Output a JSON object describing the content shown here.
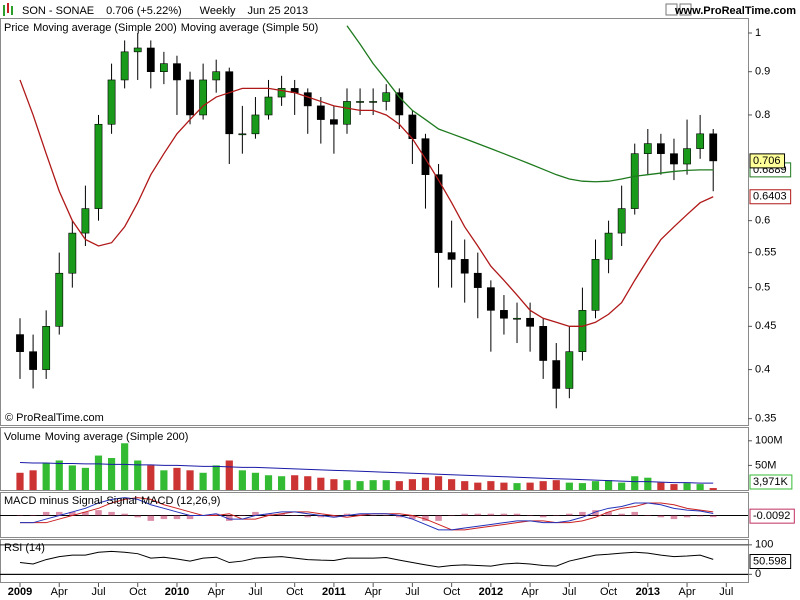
{
  "chart_data": [
    {
      "type": "candlestick",
      "title": "SON - SONAE",
      "subtitle": "0.706 (+5.22%)",
      "period": "Weekly",
      "date": "Jun 25 2013",
      "source": "www.ProRealTime.com",
      "copyright": "© ProRealTime.com",
      "name": "Price",
      "color_up": "#1a9a1a",
      "color_down": "#000000",
      "x": [
        0,
        1,
        2,
        3,
        4,
        5,
        6,
        7,
        8,
        9,
        10,
        11,
        12,
        13,
        14,
        15,
        16,
        17,
        18,
        19,
        20,
        21,
        22,
        23,
        24,
        25,
        26,
        27,
        28,
        29,
        30,
        31,
        32,
        33,
        34,
        35,
        36,
        37,
        38,
        39,
        40,
        41,
        42,
        43,
        44,
        45,
        46,
        47,
        48,
        49,
        50,
        51,
        52,
        53
      ],
      "open": [
        0.44,
        0.42,
        0.4,
        0.45,
        0.52,
        0.58,
        0.62,
        0.78,
        0.88,
        0.95,
        0.96,
        0.9,
        0.92,
        0.88,
        0.8,
        0.88,
        0.9,
        0.76,
        0.76,
        0.8,
        0.84,
        0.86,
        0.85,
        0.82,
        0.79,
        0.78,
        0.83,
        0.83,
        0.83,
        0.85,
        0.8,
        0.75,
        0.68,
        0.55,
        0.54,
        0.52,
        0.5,
        0.47,
        0.46,
        0.46,
        0.45,
        0.41,
        0.38,
        0.42,
        0.47,
        0.54,
        0.58,
        0.62,
        0.72,
        0.74,
        0.72,
        0.7,
        0.73,
        0.76
      ],
      "high": [
        0.46,
        0.44,
        0.47,
        0.55,
        0.6,
        0.66,
        0.8,
        0.92,
        0.98,
        1.0,
        0.98,
        0.95,
        0.94,
        0.9,
        0.92,
        0.93,
        0.91,
        0.82,
        0.84,
        0.88,
        0.89,
        0.88,
        0.86,
        0.84,
        0.82,
        0.86,
        0.86,
        0.86,
        0.87,
        0.86,
        0.81,
        0.76,
        0.7,
        0.6,
        0.57,
        0.55,
        0.51,
        0.49,
        0.48,
        0.48,
        0.46,
        0.43,
        0.45,
        0.5,
        0.57,
        0.6,
        0.66,
        0.74,
        0.77,
        0.76,
        0.75,
        0.79,
        0.8,
        0.77
      ],
      "low": [
        0.39,
        0.38,
        0.39,
        0.44,
        0.5,
        0.56,
        0.6,
        0.76,
        0.86,
        0.88,
        0.86,
        0.87,
        0.8,
        0.78,
        0.79,
        0.85,
        0.7,
        0.72,
        0.75,
        0.79,
        0.82,
        0.8,
        0.76,
        0.74,
        0.72,
        0.76,
        0.8,
        0.8,
        0.81,
        0.77,
        0.7,
        0.62,
        0.5,
        0.5,
        0.48,
        0.46,
        0.42,
        0.44,
        0.43,
        0.42,
        0.39,
        0.36,
        0.37,
        0.41,
        0.46,
        0.52,
        0.56,
        0.61,
        0.68,
        0.68,
        0.67,
        0.68,
        0.71,
        0.65
      ],
      "close": [
        0.42,
        0.4,
        0.45,
        0.52,
        0.58,
        0.62,
        0.78,
        0.88,
        0.95,
        0.96,
        0.9,
        0.92,
        0.88,
        0.8,
        0.88,
        0.9,
        0.76,
        0.76,
        0.8,
        0.84,
        0.86,
        0.85,
        0.82,
        0.79,
        0.78,
        0.83,
        0.83,
        0.83,
        0.85,
        0.8,
        0.75,
        0.68,
        0.55,
        0.54,
        0.52,
        0.5,
        0.47,
        0.46,
        0.46,
        0.45,
        0.41,
        0.38,
        0.42,
        0.47,
        0.54,
        0.58,
        0.62,
        0.72,
        0.74,
        0.72,
        0.7,
        0.73,
        0.76,
        0.706
      ],
      "series": [
        {
          "name": "Moving average (Simple 200)",
          "color": "#1e7a1e",
          "values": [
            null,
            null,
            null,
            null,
            null,
            null,
            null,
            null,
            null,
            null,
            null,
            null,
            null,
            null,
            null,
            null,
            null,
            null,
            null,
            null,
            null,
            null,
            null,
            null,
            null,
            1.02,
            0.97,
            0.92,
            0.88,
            0.84,
            0.81,
            0.79,
            0.77,
            0.76,
            0.75,
            0.74,
            0.73,
            0.72,
            0.71,
            0.7,
            0.69,
            0.68,
            0.672,
            0.668,
            0.667,
            0.668,
            0.672,
            0.677,
            0.68,
            0.683,
            0.686,
            0.688,
            0.689,
            0.6889
          ]
        },
        {
          "name": "Moving average (Simple 50)",
          "color": "#b01818",
          "values": [
            0.88,
            0.8,
            0.72,
            0.65,
            0.6,
            0.57,
            0.56,
            0.565,
            0.59,
            0.63,
            0.68,
            0.72,
            0.76,
            0.79,
            0.82,
            0.84,
            0.85,
            0.86,
            0.86,
            0.86,
            0.855,
            0.85,
            0.84,
            0.83,
            0.82,
            0.815,
            0.81,
            0.81,
            0.8,
            0.78,
            0.75,
            0.71,
            0.67,
            0.63,
            0.59,
            0.56,
            0.53,
            0.51,
            0.49,
            0.47,
            0.46,
            0.455,
            0.45,
            0.45,
            0.455,
            0.465,
            0.48,
            0.51,
            0.54,
            0.57,
            0.59,
            0.61,
            0.63,
            0.6403
          ]
        }
      ],
      "log_scale": true,
      "xlim": [
        -1.53,
        55.66
      ],
      "ylim": [
        0.344,
        1.036
      ],
      "yticks": [
        0.35,
        0.4,
        0.45,
        0.5,
        0.55,
        0.6,
        0.8,
        0.9,
        1
      ]
    },
    {
      "type": "bar",
      "x": [
        0,
        1,
        2,
        3,
        4,
        5,
        6,
        7,
        8,
        9,
        10,
        11,
        12,
        13,
        14,
        15,
        16,
        17,
        18,
        19,
        20,
        21,
        22,
        23,
        24,
        25,
        26,
        27,
        28,
        29,
        30,
        31,
        32,
        33,
        34,
        35,
        36,
        37,
        38,
        39,
        40,
        41,
        42,
        43,
        44,
        45,
        46,
        47,
        48,
        49,
        50,
        51,
        52,
        53
      ],
      "xlim": [
        -1.53,
        55.66
      ],
      "ylim": [
        0,
        124000000
      ],
      "yticks": [
        {
          "value": 50000000,
          "label": "50M"
        },
        {
          "value": 100000000,
          "label": "100M"
        }
      ],
      "series": [
        {
          "name": "Volume",
          "color_up": "#33bb33",
          "color_down": "#cc3333",
          "values": [
            35000000,
            40000000,
            55000000,
            60000000,
            50000000,
            45000000,
            70000000,
            65000000,
            95000000,
            60000000,
            50000000,
            40000000,
            45000000,
            40000000,
            35000000,
            50000000,
            60000000,
            40000000,
            35000000,
            30000000,
            28000000,
            30000000,
            28000000,
            25000000,
            22000000,
            20000000,
            18000000,
            20000000,
            20000000,
            18000000,
            22000000,
            25000000,
            28000000,
            22000000,
            18000000,
            15000000,
            18000000,
            15000000,
            14000000,
            15000000,
            18000000,
            20000000,
            15000000,
            14000000,
            18000000,
            20000000,
            15000000,
            28000000,
            25000000,
            15000000,
            12000000,
            14000000,
            12000000,
            3971000
          ],
          "value_labels": [
            null,
            null,
            null,
            null,
            null,
            null,
            null,
            null,
            null,
            null,
            null,
            null,
            null,
            null,
            null,
            null,
            null,
            null,
            null,
            null,
            null,
            null,
            null,
            null,
            null,
            null,
            null,
            null,
            null,
            null,
            null,
            null,
            null,
            null,
            null,
            null,
            null,
            null,
            null,
            null,
            null,
            null,
            null,
            null,
            null,
            null,
            null,
            null,
            null,
            null,
            null,
            null,
            null,
            "3,971K"
          ]
        },
        {
          "name": "Moving average (Simple 200)",
          "type": "line",
          "color": "#1a1aa8",
          "values": [
            56000000,
            55000000,
            55000000,
            54000000,
            54000000,
            53000000,
            53000000,
            52000000,
            52000000,
            51000000,
            51000000,
            50000000,
            50000000,
            49000000,
            48000000,
            48000000,
            47000000,
            46000000,
            46000000,
            45000000,
            44000000,
            43000000,
            42000000,
            41000000,
            40000000,
            39000000,
            38000000,
            37000000,
            36000000,
            35000000,
            34000000,
            33000000,
            32000000,
            31000000,
            30000000,
            29000000,
            28000000,
            27000000,
            26000000,
            25000000,
            24000000,
            23000000,
            22000000,
            21000000,
            20000000,
            19000000,
            18000000,
            17000000,
            17000000,
            16000000,
            15000000,
            15000000,
            14000000,
            14000000
          ]
        }
      ]
    },
    {
      "type": "line",
      "x": [
        0,
        1,
        2,
        3,
        4,
        5,
        6,
        7,
        8,
        9,
        10,
        11,
        12,
        13,
        14,
        15,
        16,
        17,
        18,
        19,
        20,
        21,
        22,
        23,
        24,
        25,
        26,
        27,
        28,
        29,
        30,
        31,
        32,
        33,
        34,
        35,
        36,
        37,
        38,
        39,
        40,
        41,
        42,
        43,
        44,
        45,
        46,
        47,
        48,
        49,
        50,
        51,
        52,
        53
      ],
      "xlim": [
        -1.53,
        55.66
      ],
      "ylim": [
        -0.12,
        0.12
      ],
      "series": [
        {
          "name": "MACD minus Signal",
          "type": "bar",
          "color": "#c03060",
          "values": [
            0,
            0,
            0.02,
            0.02,
            0.02,
            0.02,
            0.03,
            0.02,
            0.01,
            -0.01,
            -0.03,
            -0.02,
            -0.02,
            -0.02,
            0,
            0.01,
            -0.03,
            0,
            0.02,
            0.01,
            0.01,
            0,
            -0.01,
            -0.01,
            -0.01,
            0.01,
            0.01,
            0,
            0,
            -0.01,
            -0.02,
            -0.03,
            -0.03,
            0,
            0.01,
            0.01,
            0.01,
            0.01,
            0.01,
            0,
            -0.01,
            0,
            0.01,
            0.02,
            0.03,
            0.02,
            0.01,
            0.02,
            0,
            -0.01,
            -0.02,
            -0.01,
            -0.005,
            -0.0092
          ]
        },
        {
          "name": "Signal",
          "color": "#cc2222",
          "values": [
            -0.04,
            -0.04,
            -0.04,
            -0.02,
            0,
            0.02,
            0.04,
            0.07,
            0.09,
            0.1,
            0.09,
            0.06,
            0.04,
            0.02,
            0,
            0,
            0.01,
            -0.02,
            -0.02,
            0,
            0.01,
            0.02,
            0.02,
            0.01,
            0,
            -0.01,
            0,
            0.01,
            0.01,
            0.01,
            0,
            -0.02,
            -0.05,
            -0.08,
            -0.08,
            -0.07,
            -0.06,
            -0.05,
            -0.04,
            -0.03,
            -0.03,
            -0.04,
            -0.04,
            -0.03,
            -0.01,
            0.02,
            0.04,
            0.05,
            0.07,
            0.07,
            0.06,
            0.04,
            0.03,
            0.0202
          ]
        },
        {
          "name": "MACD (12,26,9)",
          "color": "#2233bb",
          "values": [
            -0.04,
            -0.04,
            -0.02,
            0,
            0.02,
            0.04,
            0.07,
            0.09,
            0.1,
            0.09,
            0.06,
            0.04,
            0.02,
            0,
            0,
            0.01,
            -0.02,
            -0.02,
            0,
            0.01,
            0.02,
            0.02,
            0.01,
            0,
            -0.01,
            0,
            0.01,
            0.01,
            0.01,
            0,
            -0.02,
            -0.05,
            -0.08,
            -0.08,
            -0.07,
            -0.06,
            -0.05,
            -0.04,
            -0.03,
            -0.03,
            -0.04,
            -0.04,
            -0.03,
            -0.01,
            0.02,
            0.04,
            0.05,
            0.07,
            0.07,
            0.06,
            0.04,
            0.03,
            0.025,
            0.011
          ]
        }
      ]
    },
    {
      "type": "line",
      "x": [
        0,
        1,
        2,
        3,
        4,
        5,
        6,
        7,
        8,
        9,
        10,
        11,
        12,
        13,
        14,
        15,
        16,
        17,
        18,
        19,
        20,
        21,
        22,
        23,
        24,
        25,
        26,
        27,
        28,
        29,
        30,
        31,
        32,
        33,
        34,
        35,
        36,
        37,
        38,
        39,
        40,
        41,
        42,
        43,
        44,
        45,
        46,
        47,
        48,
        49,
        50,
        51,
        52,
        53
      ],
      "xlim": [
        -1.53,
        55.66
      ],
      "ylim": [
        -26,
        113
      ],
      "yticks": [
        0,
        100
      ],
      "xticks": [
        {
          "value": 0,
          "label": "2009"
        },
        {
          "value": 3,
          "label": "Apr"
        },
        {
          "value": 6,
          "label": "Jul"
        },
        {
          "value": 9,
          "label": "Oct"
        },
        {
          "value": 12,
          "label": "2010"
        },
        {
          "value": 15,
          "label": "Apr"
        },
        {
          "value": 18,
          "label": "Jul"
        },
        {
          "value": 21,
          "label": "Oct"
        },
        {
          "value": 24,
          "label": "2011"
        },
        {
          "value": 27,
          "label": "Apr"
        },
        {
          "value": 30,
          "label": "Jul"
        },
        {
          "value": 33,
          "label": "Oct"
        },
        {
          "value": 36,
          "label": "2012"
        },
        {
          "value": 39,
          "label": "Apr"
        },
        {
          "value": 42,
          "label": "Jul"
        },
        {
          "value": 45,
          "label": "Oct"
        },
        {
          "value": 48,
          "label": "2013"
        },
        {
          "value": 51,
          "label": "Apr"
        },
        {
          "value": 54,
          "label": "Jul"
        }
      ],
      "series": [
        {
          "name": "RSI (14)",
          "color": "#000000",
          "values": [
            40,
            35,
            50,
            60,
            65,
            65,
            75,
            78,
            75,
            70,
            55,
            58,
            52,
            45,
            55,
            58,
            40,
            45,
            55,
            58,
            60,
            55,
            50,
            48,
            47,
            55,
            55,
            55,
            57,
            48,
            40,
            32,
            25,
            30,
            32,
            30,
            28,
            35,
            38,
            35,
            30,
            28,
            45,
            55,
            65,
            68,
            72,
            75,
            72,
            65,
            60,
            62,
            65,
            50.598
          ]
        }
      ]
    }
  ]
}
